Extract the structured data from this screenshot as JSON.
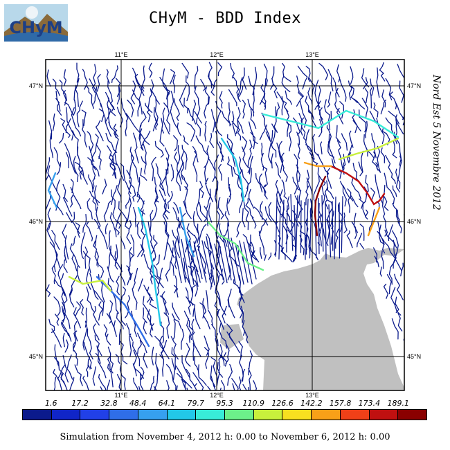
{
  "header": {
    "logo_text": "CHyM",
    "title": "CHyM - BDD Index"
  },
  "map": {
    "lon_labels": [
      "11°E",
      "12°E",
      "13°E"
    ],
    "lat_labels": [
      "47°N",
      "46°N",
      "45°N"
    ],
    "side_label": "Nord Est 5 Novembre 2012",
    "land_color": "#ffffff",
    "sea_color": "#c0c0c0",
    "river_color": "#0a1a8c"
  },
  "legend": {
    "labels": [
      "1.6",
      "17.2",
      "32.8",
      "48.4",
      "64.1",
      "79.7",
      "95.3",
      "110.9",
      "126.6",
      "142.2",
      "157.8",
      "173.4",
      "189.1"
    ],
    "colors": [
      "#0b1a8c",
      "#1025c8",
      "#2140e8",
      "#2f6ee8",
      "#36a0ef",
      "#22c8e8",
      "#38ecd8",
      "#6cf08a",
      "#c8f03c",
      "#f8e020",
      "#f8a018",
      "#f04018",
      "#c01010",
      "#8a0000"
    ]
  },
  "footer": {
    "text": "Simulation from November 4, 2012 h: 0.00 to November 6, 2012 h: 0.00"
  }
}
